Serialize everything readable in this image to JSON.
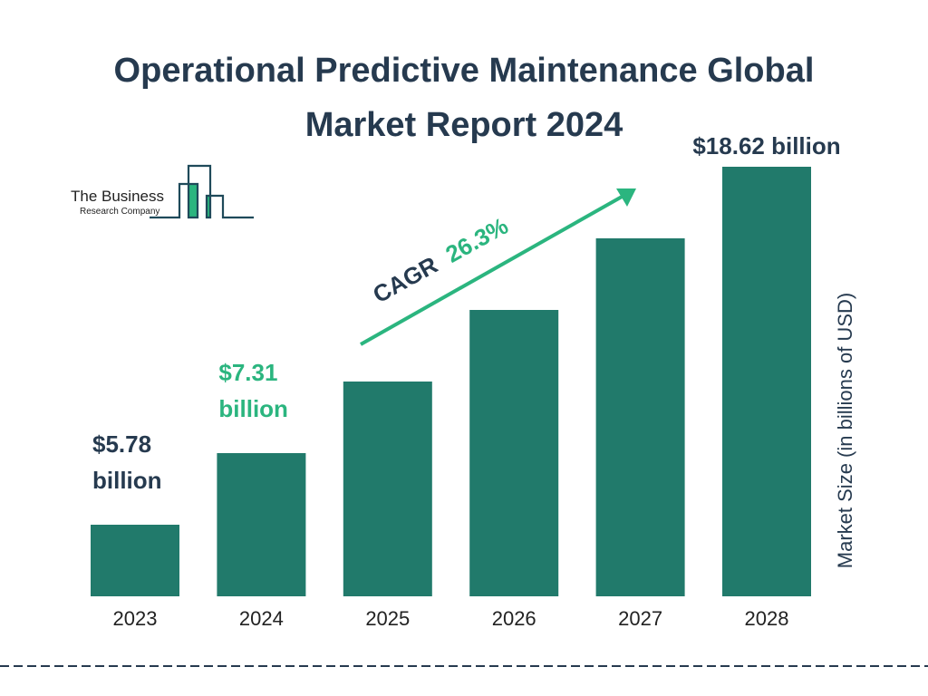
{
  "chart_data": {
    "type": "bar",
    "title": "Operational Predictive Maintenance Global Market Report 2024",
    "title_lines": [
      "Operational Predictive Maintenance Global",
      "Market Report 2024"
    ],
    "categories": [
      "2023",
      "2024",
      "2025",
      "2026",
      "2027",
      "2028"
    ],
    "values": [
      5.78,
      7.31,
      9.23,
      11.66,
      14.74,
      18.62
    ],
    "data_labels": [
      {
        "category": "2023",
        "lines": [
          "$5.78",
          "billion"
        ],
        "color": "#263a4f"
      },
      {
        "category": "2024",
        "lines": [
          "$7.31",
          "billion"
        ],
        "color": "#2bb57f"
      },
      {
        "category": "2028",
        "lines": [
          "$18.62 billion"
        ],
        "color": "#263a4f"
      }
    ],
    "ylabel": "Market Size (in billions of USD)",
    "xlabel": "",
    "annotation": {
      "prefix": "CAGR",
      "value": "26.3%"
    },
    "grid": false,
    "bar_color": "#217a6b",
    "accent_color": "#2bb57f",
    "text_color": "#263a4f"
  },
  "logo": {
    "line1": "The Business",
    "line2": "Research Company"
  }
}
